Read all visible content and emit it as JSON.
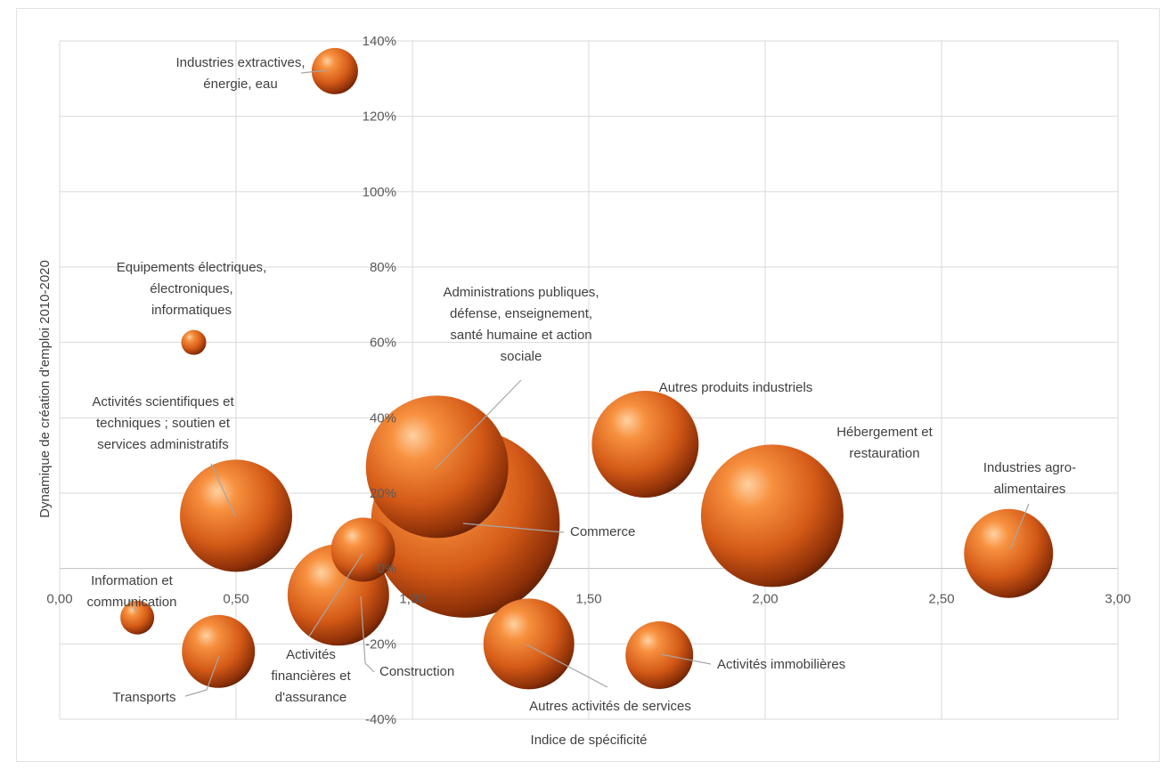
{
  "chart_data": {
    "type": "scatter",
    "subtype": "bubble",
    "title": "",
    "xlabel": "Indice de spécificité",
    "ylabel": "Dynamique de création d'emploi 2010-2020",
    "xlim": [
      0,
      3
    ],
    "ylim": [
      -40,
      140
    ],
    "x_ticks": [
      "0,00",
      "0,50",
      "1,00",
      "1,50",
      "2,00",
      "2,50",
      "3,00"
    ],
    "y_ticks": [
      "-40%",
      "-20%",
      "0%",
      "20%",
      "40%",
      "60%",
      "80%",
      "100%",
      "120%",
      "140%"
    ],
    "grid": true,
    "legend": "none",
    "bubble_color": "#e0641e",
    "points": [
      {
        "label": [
          "Industries extractives,",
          "énergie, eau"
        ],
        "x": 0.78,
        "y": 132,
        "size_rel": 26
      },
      {
        "label": [
          "Equipements électriques,",
          "électroniques,",
          "informatiques"
        ],
        "x": 0.38,
        "y": 60,
        "size_rel": 14
      },
      {
        "label": [
          "Administrations publiques,",
          "défense, enseignement,",
          "santé humaine et action",
          "sociale"
        ],
        "x": 1.07,
        "y": 27,
        "size_rel": 80
      },
      {
        "label": [
          "Autres produits industriels"
        ],
        "x": 1.66,
        "y": 33,
        "size_rel": 60
      },
      {
        "label": [
          "Hébergement et",
          "restauration"
        ],
        "x": 2.02,
        "y": 14,
        "size_rel": 80
      },
      {
        "label": [
          "Industries agro-",
          "alimentaires"
        ],
        "x": 2.69,
        "y": 4,
        "size_rel": 50
      },
      {
        "label": [
          "Activités scientifiques et",
          "techniques ; soutien et",
          "services administratifs"
        ],
        "x": 0.5,
        "y": 14,
        "size_rel": 63
      },
      {
        "label": [
          "Commerce"
        ],
        "x": 1.15,
        "y": 12,
        "size_rel": 106
      },
      {
        "label": [
          "Information et",
          "communication"
        ],
        "x": 0.22,
        "y": -13,
        "size_rel": 19
      },
      {
        "label": [
          "Transports"
        ],
        "x": 0.45,
        "y": -22,
        "size_rel": 41
      },
      {
        "label": [
          "Activités",
          "financières et",
          "d'assurance"
        ],
        "x": 0.86,
        "y": 5,
        "size_rel": 36
      },
      {
        "label": [
          "Construction"
        ],
        "x": 0.79,
        "y": -7,
        "size_rel": 57
      },
      {
        "label": [
          "Autres activités de services"
        ],
        "x": 1.33,
        "y": -20,
        "size_rel": 51
      },
      {
        "label": [
          "Activités immobilières"
        ],
        "x": 1.7,
        "y": -23,
        "size_rel": 38
      }
    ]
  }
}
